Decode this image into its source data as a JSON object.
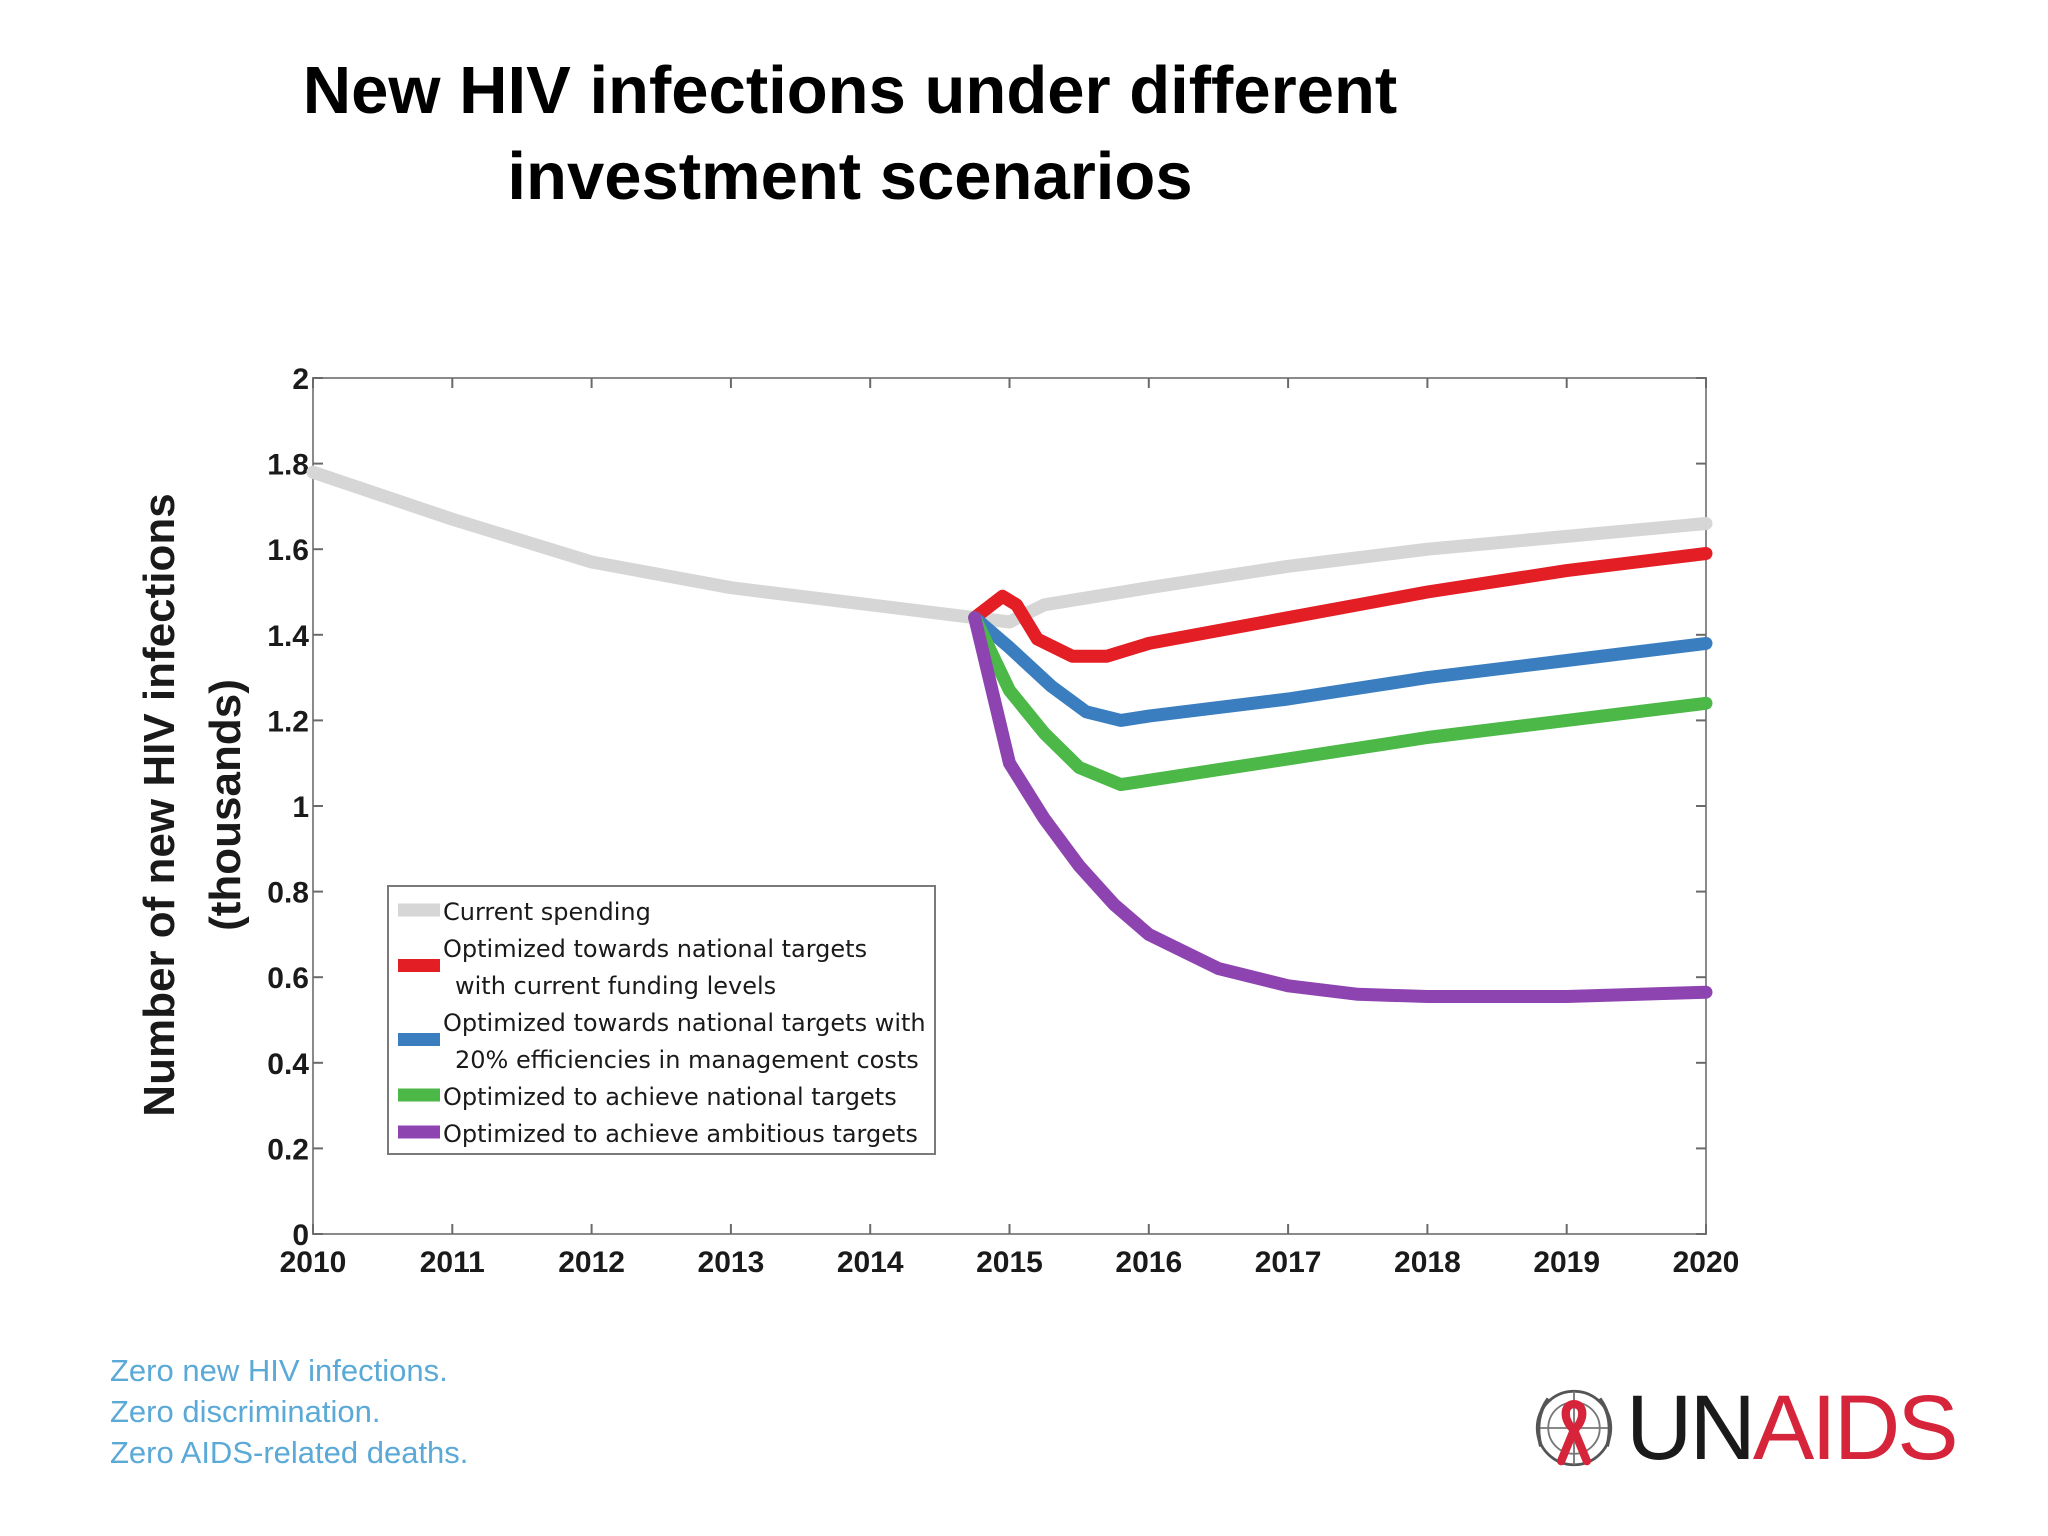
{
  "slide": {
    "title_line1": "New HIV infections under different",
    "title_line2": "investment scenarios"
  },
  "chart_data": {
    "type": "line",
    "title": "",
    "xlabel": "",
    "ylabel_line1": "Number of new HIV infections",
    "ylabel_line2": "(thousands)",
    "xlim": [
      2010,
      2020
    ],
    "ylim": [
      0,
      2
    ],
    "xticks": [
      {
        "value": 2010,
        "label": "2010"
      },
      {
        "value": 2011,
        "label": "2011"
      },
      {
        "value": 2012,
        "label": "2012"
      },
      {
        "value": 2013,
        "label": "2013"
      },
      {
        "value": 2014,
        "label": "2014"
      },
      {
        "value": 2015,
        "label": "2015"
      },
      {
        "value": 2016,
        "label": "2016"
      },
      {
        "value": 2017,
        "label": "2017"
      },
      {
        "value": 2018,
        "label": "2018"
      },
      {
        "value": 2019,
        "label": "2019"
      },
      {
        "value": 2020,
        "label": "2020"
      }
    ],
    "yticks": [
      {
        "value": 0,
        "label": "0"
      },
      {
        "value": 0.2,
        "label": "0.2"
      },
      {
        "value": 0.4,
        "label": "0.4"
      },
      {
        "value": 0.6,
        "label": "0.6"
      },
      {
        "value": 0.8,
        "label": "0.8"
      },
      {
        "value": 1,
        "label": "1"
      },
      {
        "value": 1.2,
        "label": "1.2"
      },
      {
        "value": 1.4,
        "label": "1.4"
      },
      {
        "value": 1.6,
        "label": "1.6"
      },
      {
        "value": 1.8,
        "label": "1.8"
      },
      {
        "value": 2,
        "label": "2"
      }
    ],
    "grid": false,
    "legend_position": "bottom-left",
    "series": [
      {
        "key": "current",
        "legend_lines": [
          "Current spending"
        ],
        "color": "#d6d6d6",
        "points": [
          [
            2010,
            1.78
          ],
          [
            2011,
            1.67
          ],
          [
            2012,
            1.57
          ],
          [
            2013,
            1.51
          ],
          [
            2014,
            1.47
          ],
          [
            2014.75,
            1.44
          ],
          [
            2015,
            1.43
          ],
          [
            2015.25,
            1.47
          ],
          [
            2016,
            1.51
          ],
          [
            2017,
            1.56
          ],
          [
            2018,
            1.6
          ],
          [
            2019,
            1.63
          ],
          [
            2020,
            1.66
          ]
        ]
      },
      {
        "key": "national_current_funding",
        "legend_lines": [
          "Optimized towards national targets",
          "with current funding levels"
        ],
        "color": "#e31e24",
        "points": [
          [
            2014.75,
            1.44
          ],
          [
            2014.95,
            1.49
          ],
          [
            2015.05,
            1.47
          ],
          [
            2015.2,
            1.39
          ],
          [
            2015.45,
            1.35
          ],
          [
            2015.7,
            1.35
          ],
          [
            2016,
            1.38
          ],
          [
            2017,
            1.44
          ],
          [
            2018,
            1.5
          ],
          [
            2019,
            1.55
          ],
          [
            2020,
            1.59
          ]
        ]
      },
      {
        "key": "national_20pct_efficiency",
        "legend_lines": [
          "Optimized towards national targets with",
          "20% efficiencies in management costs"
        ],
        "color": "#3a7ec0",
        "points": [
          [
            2014.75,
            1.44
          ],
          [
            2015,
            1.37
          ],
          [
            2015.3,
            1.28
          ],
          [
            2015.55,
            1.22
          ],
          [
            2015.8,
            1.2
          ],
          [
            2016,
            1.21
          ],
          [
            2017,
            1.25
          ],
          [
            2018,
            1.3
          ],
          [
            2019,
            1.34
          ],
          [
            2020,
            1.38
          ]
        ]
      },
      {
        "key": "national_targets",
        "legend_lines": [
          "Optimized to achieve national targets"
        ],
        "color": "#4cb848",
        "points": [
          [
            2014.75,
            1.44
          ],
          [
            2015,
            1.27
          ],
          [
            2015.25,
            1.17
          ],
          [
            2015.5,
            1.09
          ],
          [
            2015.8,
            1.05
          ],
          [
            2016,
            1.06
          ],
          [
            2017,
            1.11
          ],
          [
            2018,
            1.16
          ],
          [
            2019,
            1.2
          ],
          [
            2020,
            1.24
          ]
        ]
      },
      {
        "key": "ambitious_targets",
        "legend_lines": [
          "Optimized to achieve ambitious targets"
        ],
        "color": "#8e44b0",
        "points": [
          [
            2014.75,
            1.44
          ],
          [
            2015,
            1.1
          ],
          [
            2015.25,
            0.97
          ],
          [
            2015.5,
            0.86
          ],
          [
            2015.75,
            0.77
          ],
          [
            2016,
            0.7
          ],
          [
            2016.5,
            0.62
          ],
          [
            2017,
            0.58
          ],
          [
            2017.5,
            0.56
          ],
          [
            2018,
            0.555
          ],
          [
            2019,
            0.555
          ],
          [
            2020,
            0.565
          ]
        ]
      }
    ]
  },
  "footer": {
    "tagline_line1": "Zero new HIV infections.",
    "tagline_line2": "Zero discrimination.",
    "tagline_line3": "Zero AIDS-related deaths."
  },
  "logo": {
    "text_un": "UN",
    "text_aids": "AIDS",
    "emblem": "un-emblem-red-ribbon-icon"
  }
}
